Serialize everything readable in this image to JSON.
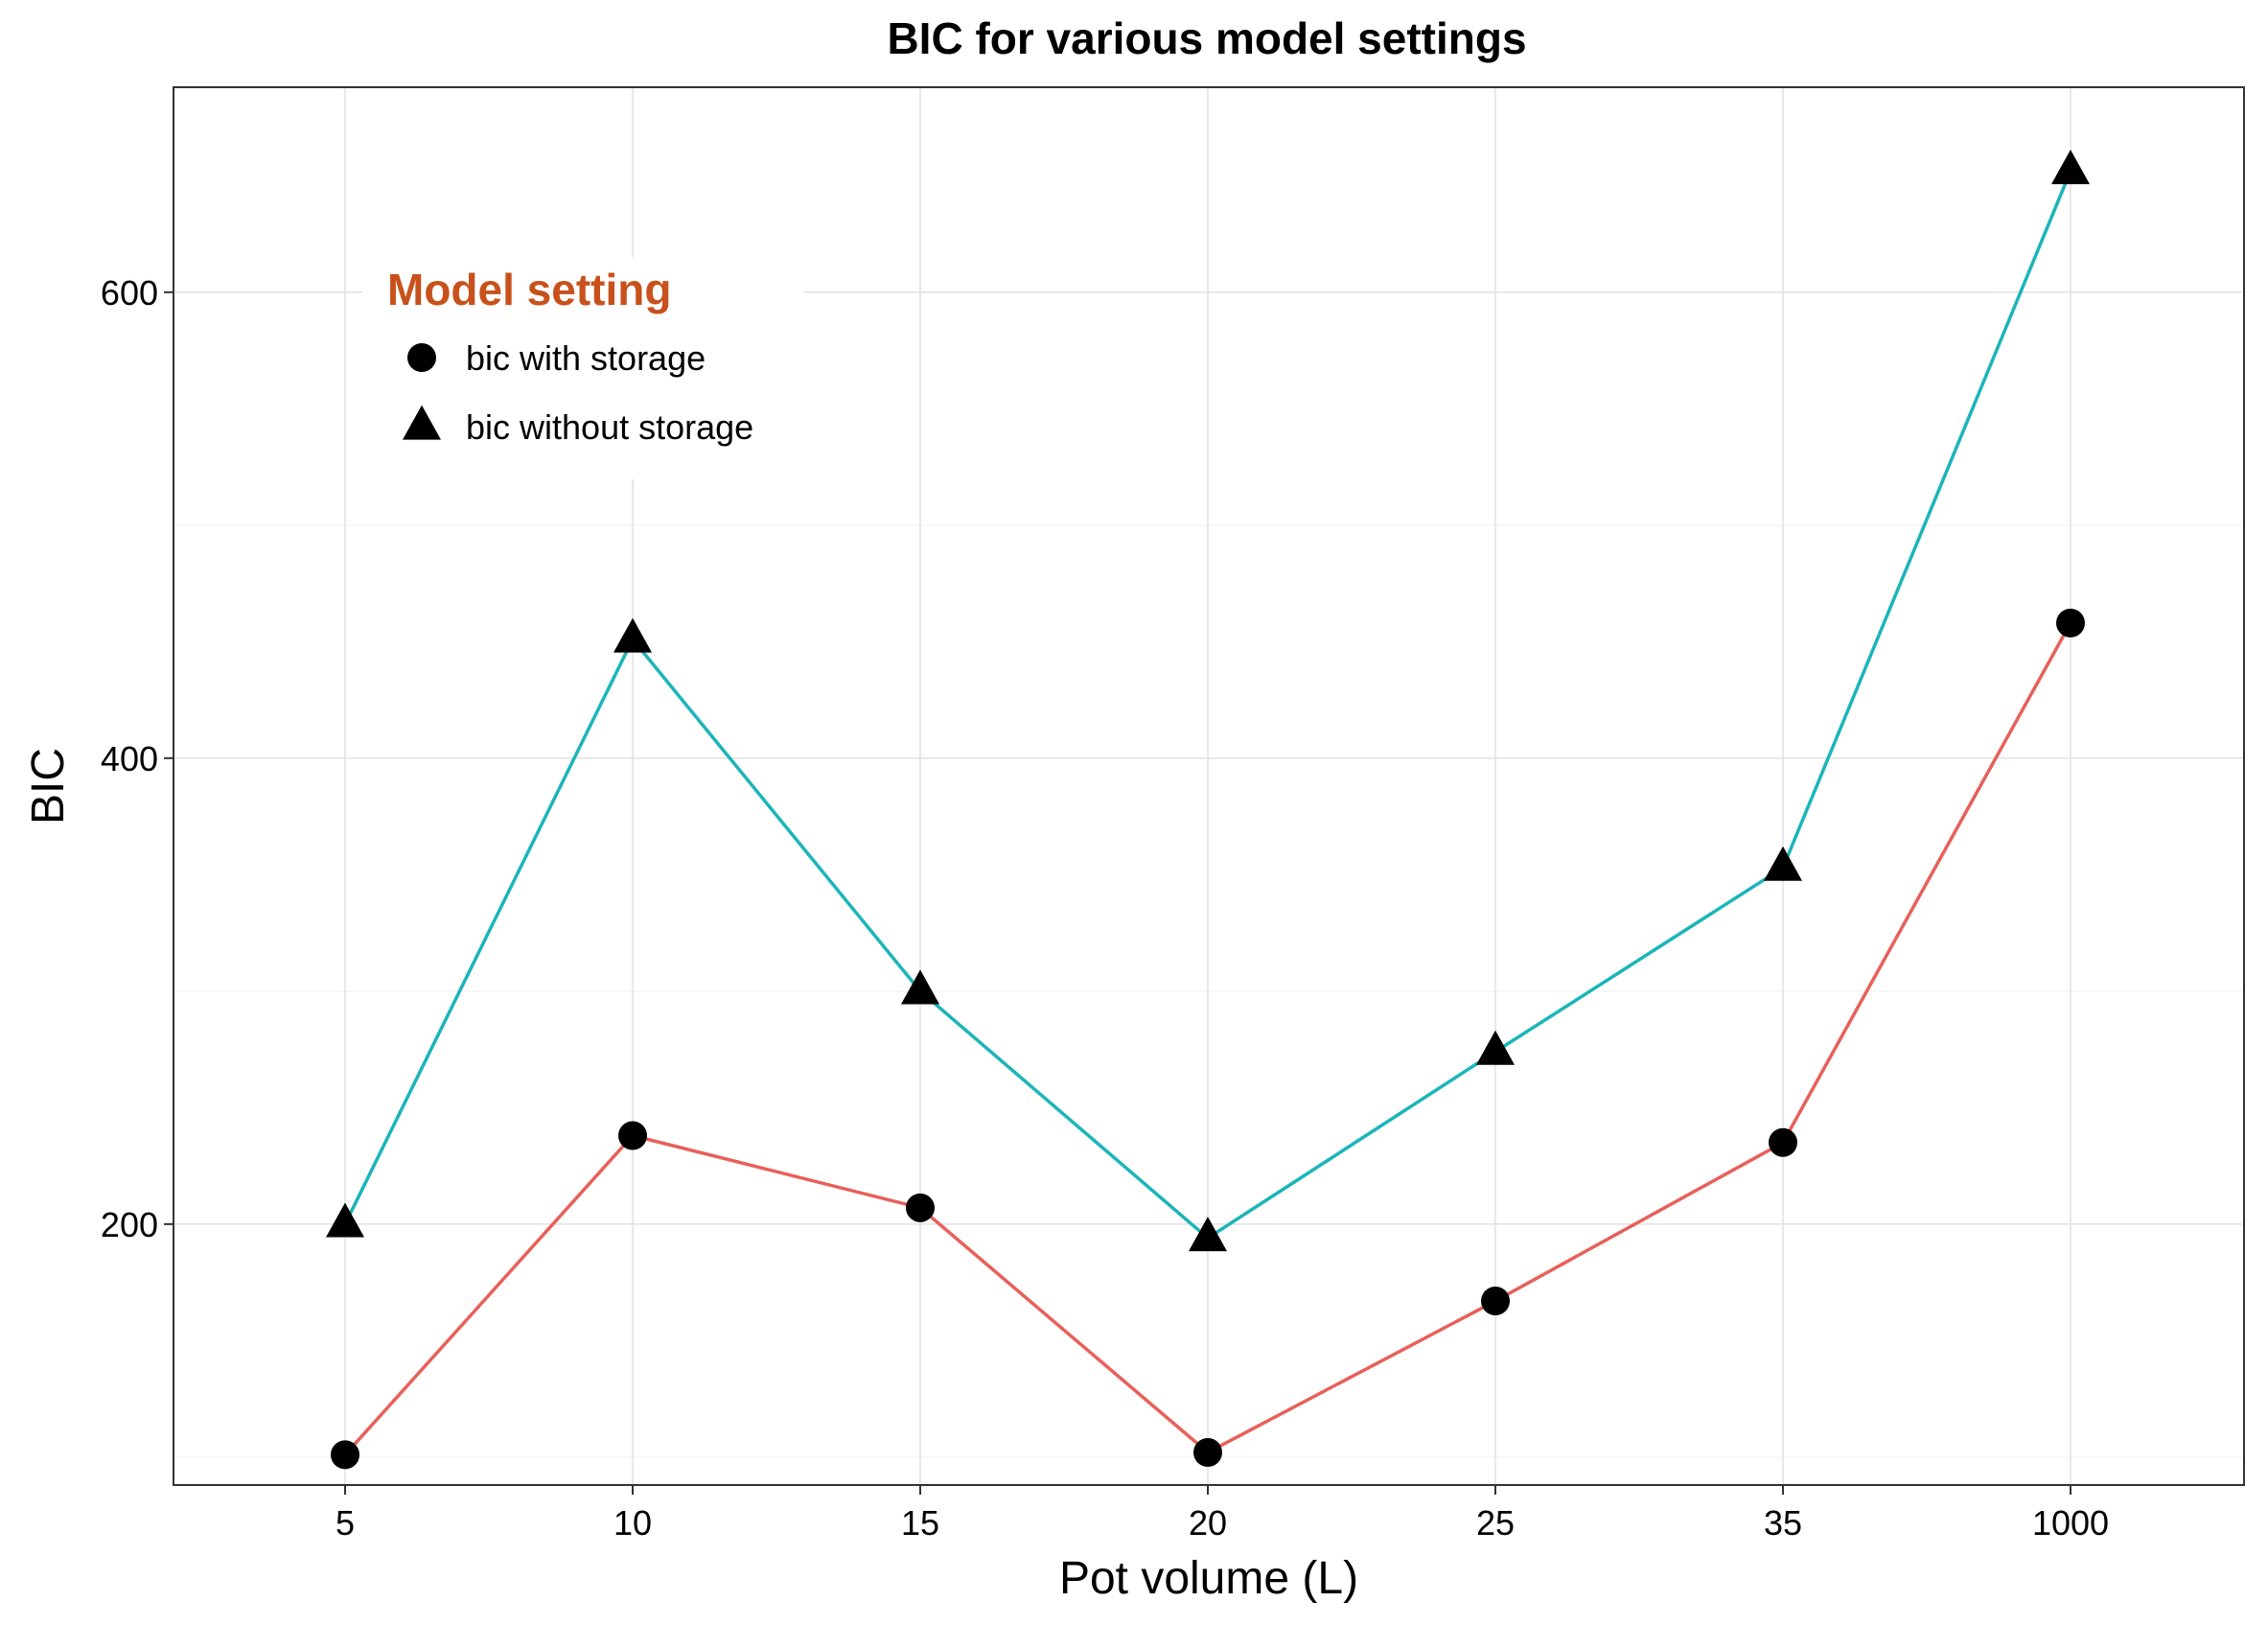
{
  "chart_data": {
    "type": "line",
    "title": "BIC for various model settings",
    "xlabel": "Pot volume (L)",
    "ylabel": "BIC",
    "categories": [
      "5",
      "10",
      "15",
      "20",
      "25",
      "35",
      "1000"
    ],
    "ylim": [
      88,
      688
    ],
    "yticks": [
      200,
      400,
      600
    ],
    "grid": true,
    "legend": {
      "title": "Model setting",
      "title_color": "#C8511B",
      "placement": "top-left",
      "entries": [
        "bic with storage",
        "bic without storage"
      ]
    },
    "series": [
      {
        "name": "bic with storage",
        "values": [
          101,
          238,
          207,
          102,
          167,
          235,
          458
        ],
        "color": "#E8605A",
        "marker": "circle"
      },
      {
        "name": "bic without storage",
        "values": [
          200,
          451,
          300,
          194,
          274,
          353,
          652
        ],
        "color": "#1BB5B9",
        "marker": "triangle"
      }
    ]
  }
}
